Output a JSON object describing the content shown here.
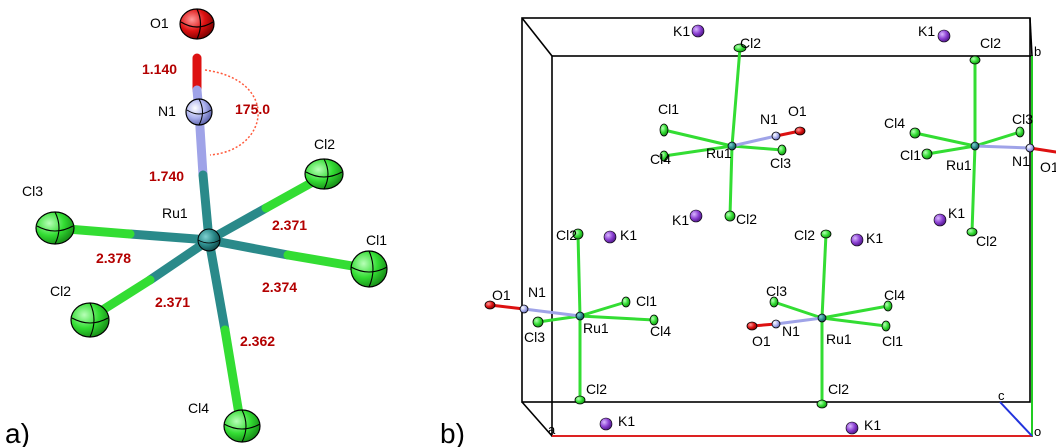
{
  "panel_a": {
    "label": "a)",
    "atoms": {
      "O1": "O1",
      "N1": "N1",
      "Ru1": "Ru1",
      "Cl1": "Cl1",
      "Cl2a": "Cl2",
      "Cl2b": "Cl2",
      "Cl3": "Cl3",
      "Cl4": "Cl4"
    },
    "values": {
      "n_o": "1.140",
      "angle": "175.0",
      "ru_n": "1.740",
      "ru_cl2_top": "2.371",
      "ru_cl3": "2.378",
      "ru_cl1": "2.374",
      "ru_cl2_bottom": "2.371",
      "ru_cl4": "2.362"
    }
  },
  "panel_b": {
    "label": "b)",
    "axes": {
      "a": "a",
      "b": "b",
      "c": "c",
      "o": "o"
    },
    "cell_labels": {
      "k1": "K1",
      "cl1": "Cl1",
      "cl2": "Cl2",
      "cl3": "Cl3",
      "cl4": "Cl4",
      "ru1": "Ru1",
      "n1": "N1",
      "o1": "O1"
    }
  },
  "colors": {
    "ruthenium": "#2a8a8a",
    "chlorine": "#33dd33",
    "nitrogen": "#9fa3e8",
    "oxygen": "#dd1111",
    "potassium": "#8a3fd1",
    "value_text": "#b30000",
    "axis_a": "#dd2222",
    "axis_b": "#22cc22",
    "axis_c": "#2233dd"
  }
}
